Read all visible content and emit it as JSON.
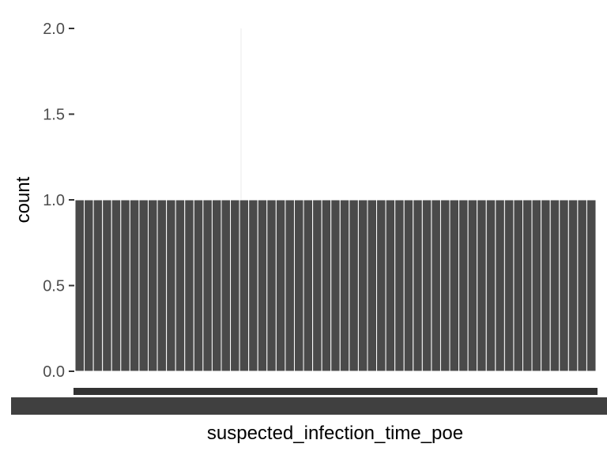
{
  "chart_data": {
    "type": "bar",
    "title": "",
    "xlabel": "suspected_infection_time_poe",
    "ylabel": "count",
    "ylim": [
      0,
      2
    ],
    "yticks": [
      "0.0",
      "0.5",
      "1.0",
      "1.5",
      "2.0"
    ],
    "grid": false,
    "bar_count": 57,
    "bar_value": 1,
    "x_tick_labels_overlapping": true,
    "colors": {
      "bar": "#4a4a4a",
      "bar_edge": "#ffffff",
      "tick": "#333333",
      "text": "#4d4d4d",
      "background": "#ffffff",
      "gridline": "#ebebeb"
    }
  }
}
